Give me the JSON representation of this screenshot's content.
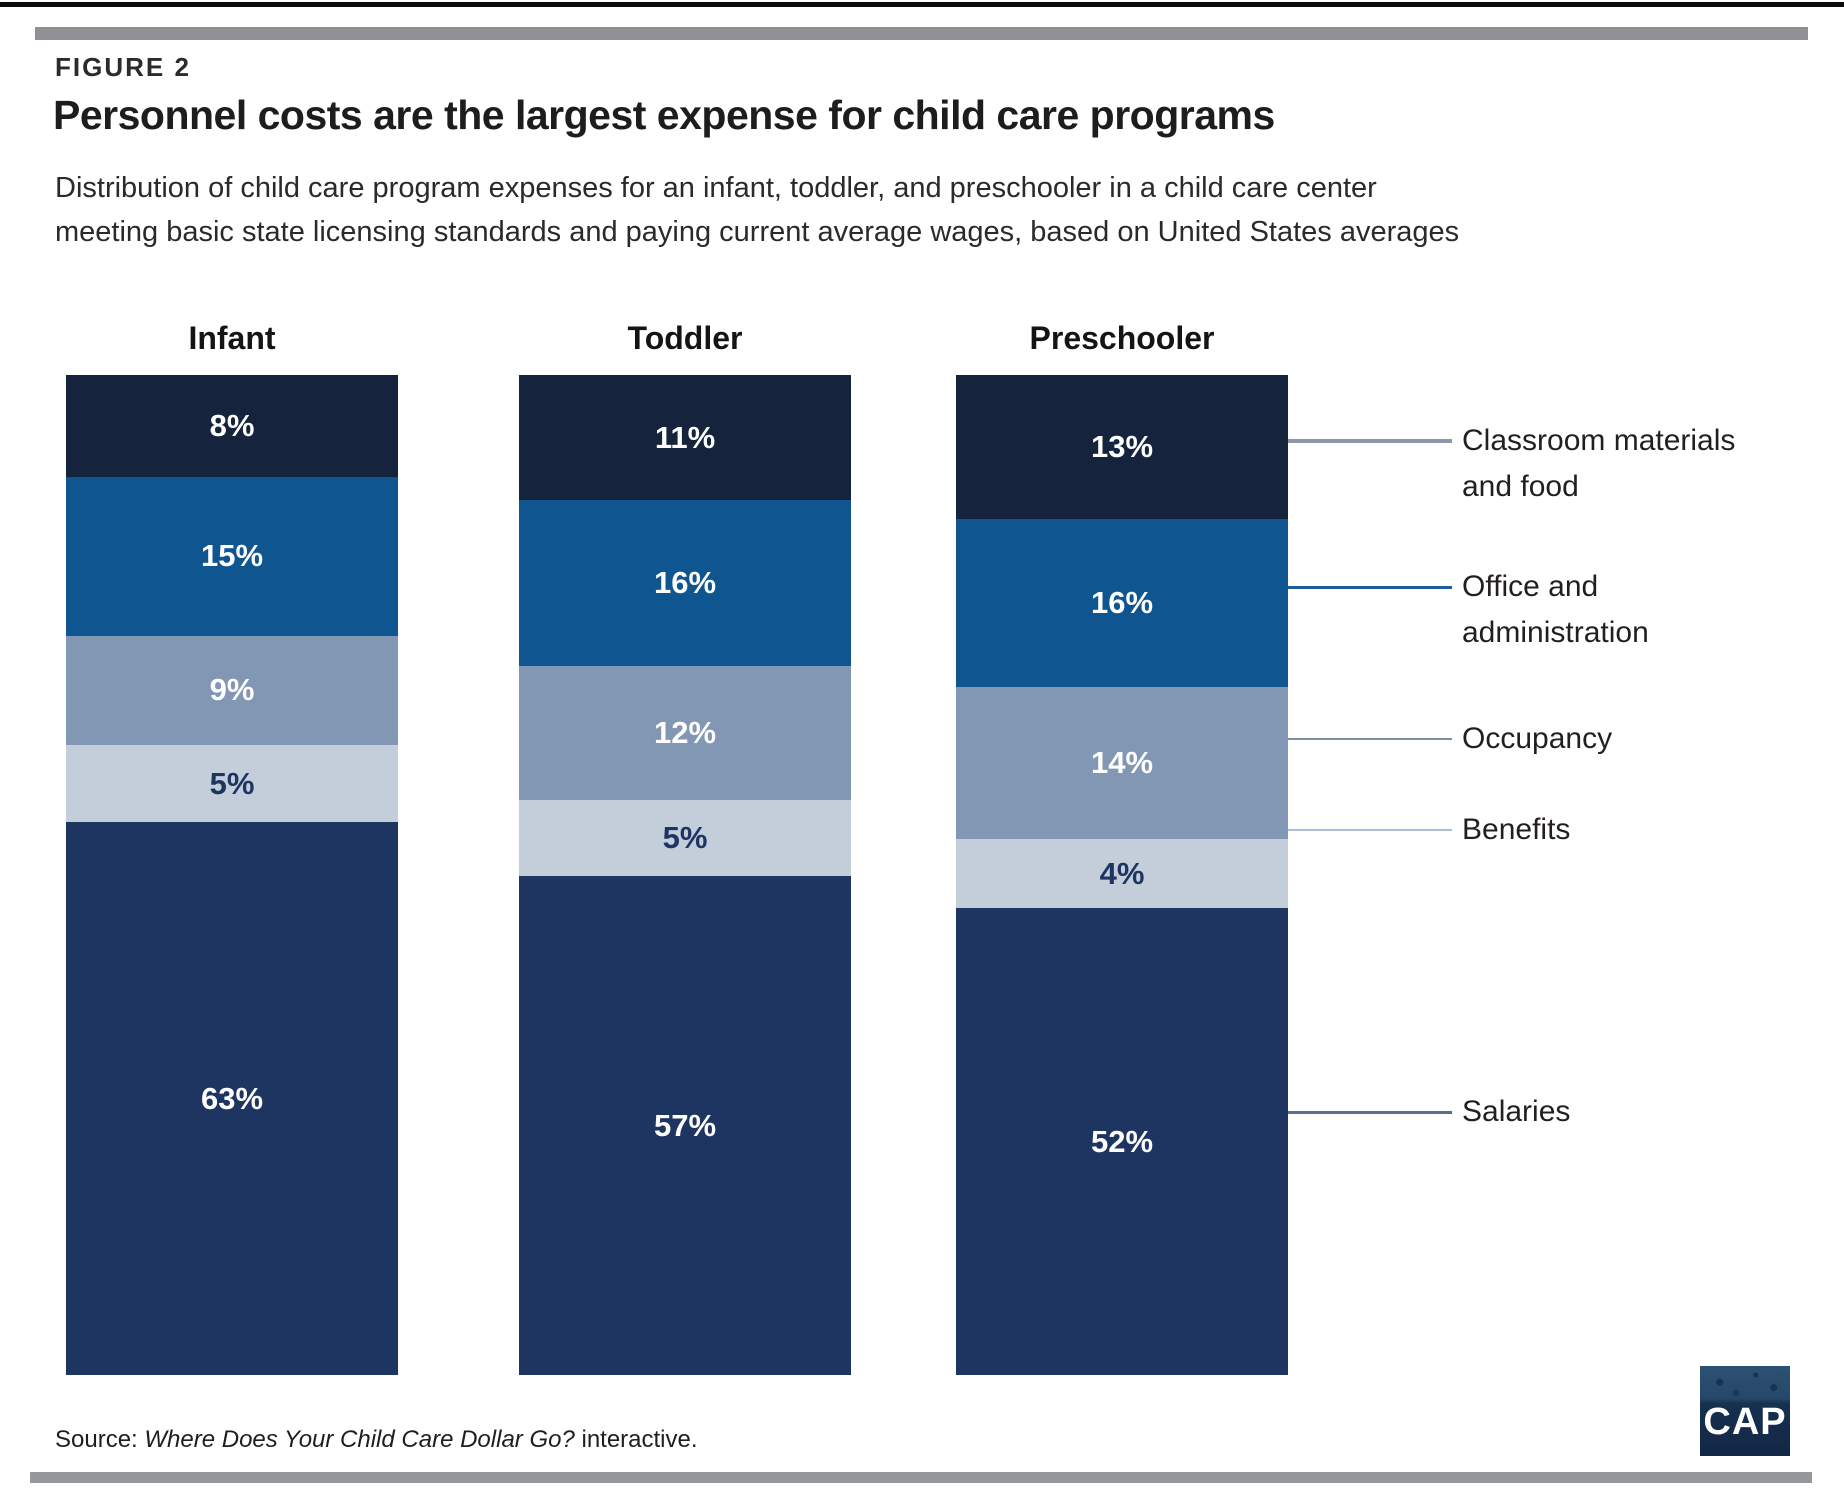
{
  "figure": {
    "label": "FIGURE 2",
    "title": "Personnel costs are the largest expense for child care programs",
    "subtitle": "Distribution of child care program expenses for an infant, toddler, and preschooler in a child care center\nmeeting basic state licensing standards and paying current average wages, based on United States averages"
  },
  "chart_data": {
    "type": "bar",
    "stacked": true,
    "orientation": "vertical",
    "value_suffix": "%",
    "categories": [
      "Infant",
      "Toddler",
      "Preschooler"
    ],
    "series": [
      {
        "name": "Classroom materials and food",
        "values": [
          8,
          11,
          13
        ],
        "color": "#15233c",
        "label_color": "#ffffff"
      },
      {
        "name": "Office and administration",
        "values": [
          15,
          16,
          16
        ],
        "color": "#0f5590",
        "label_color": "#ffffff"
      },
      {
        "name": "Occupancy",
        "values": [
          9,
          12,
          14
        ],
        "color": "#8197b3",
        "label_color": "#ffffff"
      },
      {
        "name": "Benefits",
        "values": [
          5,
          5,
          4
        ],
        "color": "#c4cedb",
        "label_color": "#1e3562"
      },
      {
        "name": "Salaries",
        "values": [
          63,
          57,
          52
        ],
        "color": "#1e3562",
        "label_color": "#ffffff"
      }
    ],
    "legend_position": "right",
    "grid": false,
    "ylim": [
      0,
      100
    ]
  },
  "legend": {
    "items": [
      {
        "label": "Classroom materials\nand food",
        "line_color": "#8d99ab",
        "line_thickness": 4
      },
      {
        "label": "Office and\nadministration",
        "line_color": "#1e5c9b",
        "line_thickness": 3
      },
      {
        "label": "Occupancy",
        "line_color": "#7e8ea4",
        "line_thickness": 2
      },
      {
        "label": "Benefits",
        "line_color": "#abbed5",
        "line_thickness": 2
      },
      {
        "label": "Salaries",
        "line_color": "#5a6e91",
        "line_thickness": 3
      }
    ]
  },
  "source": {
    "prefix": "Source: ",
    "italic_title": "Where Does Your Child Care Dollar Go?",
    "suffix": " interactive."
  },
  "logo": {
    "text": "CAP"
  }
}
